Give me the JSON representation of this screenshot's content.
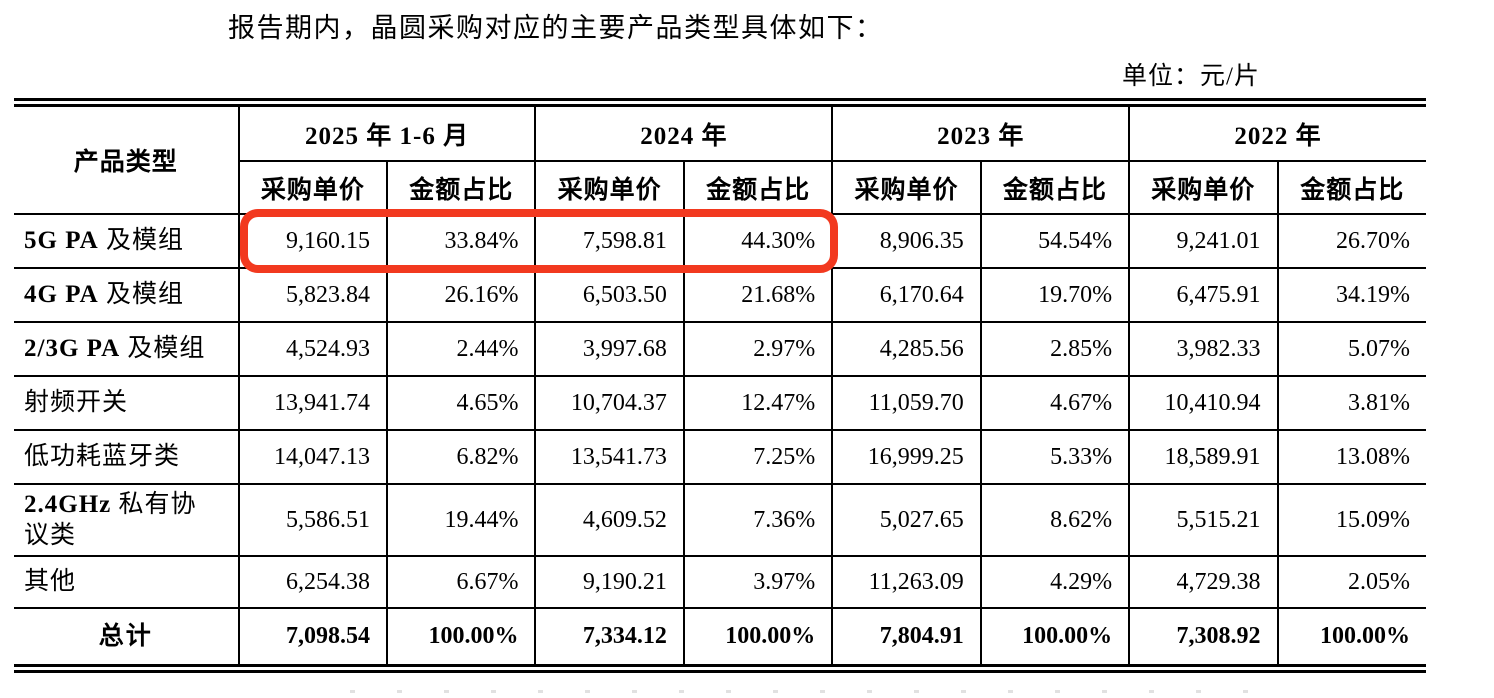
{
  "intro_text": "报告期内，晶圆采购对应的主要产品类型具体如下：",
  "unit_label": "单位：元/片",
  "table": {
    "product_col_header": "产品类型",
    "period_headers": [
      "2025 年 1-6 月",
      "2024 年",
      "2023 年",
      "2022 年"
    ],
    "sub_headers": [
      "采购单价",
      "金额占比"
    ],
    "rows": [
      {
        "product": "5G PA 及模组",
        "values": [
          "9,160.15",
          "33.84%",
          "7,598.81",
          "44.30%",
          "8,906.35",
          "54.54%",
          "9,241.01",
          "26.70%"
        ]
      },
      {
        "product": "4G PA 及模组",
        "values": [
          "5,823.84",
          "26.16%",
          "6,503.50",
          "21.68%",
          "6,170.64",
          "19.70%",
          "6,475.91",
          "34.19%"
        ]
      },
      {
        "product": "2/3G PA 及模组",
        "values": [
          "4,524.93",
          "2.44%",
          "3,997.68",
          "2.97%",
          "4,285.56",
          "2.85%",
          "3,982.33",
          "5.07%"
        ]
      },
      {
        "product": "射频开关",
        "values": [
          "13,941.74",
          "4.65%",
          "10,704.37",
          "12.47%",
          "11,059.70",
          "4.67%",
          "10,410.94",
          "3.81%"
        ]
      },
      {
        "product": "低功耗蓝牙类",
        "values": [
          "14,047.13",
          "6.82%",
          "13,541.73",
          "7.25%",
          "16,999.25",
          "5.33%",
          "18,589.91",
          "13.08%"
        ]
      },
      {
        "product": "2.4GHz 私有协\n议类",
        "values": [
          "5,586.51",
          "19.44%",
          "4,609.52",
          "7.36%",
          "5,027.65",
          "8.62%",
          "5,515.21",
          "15.09%"
        ]
      },
      {
        "product": "其他",
        "values": [
          "6,254.38",
          "6.67%",
          "9,190.21",
          "3.97%",
          "11,263.09",
          "4.29%",
          "4,729.38",
          "2.05%"
        ]
      }
    ],
    "total_row": {
      "product": "总计",
      "values": [
        "7,098.54",
        "100.00%",
        "7,334.12",
        "100.00%",
        "7,804.91",
        "100.00%",
        "7,308.92",
        "100.00%"
      ]
    }
  },
  "annotation": {
    "shape": "rounded-rectangle",
    "color": "#f2391f",
    "highlights": "5G PA 及模组 row — 2025 年 1-6 月 and 2024 年 采购单价 / 金额占比 cells"
  }
}
